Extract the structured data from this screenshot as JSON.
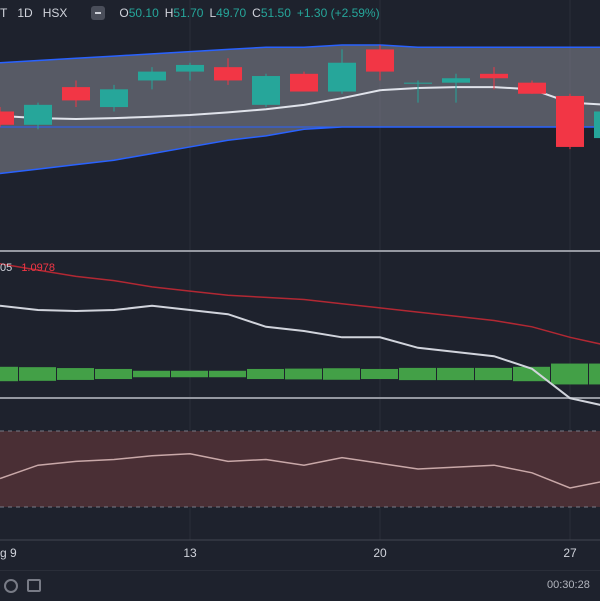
{
  "legend": {
    "symbol_tail": "T",
    "interval": "1D",
    "exchange": "HSX",
    "open_label": "O",
    "open_value": "50.10",
    "high_label": "H",
    "high_value": "51.70",
    "low_label": "L",
    "low_value": "49.70",
    "close_label": "C",
    "close_value": "51.50",
    "change": "+1.30 (+2.59%)"
  },
  "macd_legend": {
    "value_a": "05",
    "value_b": "1.0978"
  },
  "bottom_bar": {
    "time": "00:30:28"
  },
  "colors": {
    "background": "#1e222d",
    "up": "#26a69a",
    "down": "#f23645",
    "band": "#2962ff",
    "band_fill": "#868993",
    "macd_line": "#d1d4dc",
    "signal_line": "#b22833",
    "rsi_fill": "#4a2f35",
    "rsi_line": "#c9a8a8",
    "grid": "#2a2e39"
  },
  "chart_data": {
    "type": "candlestick",
    "x_ticks": [
      "g 9",
      "13",
      "20",
      "27"
    ],
    "x_tick_index": [
      0,
      5,
      10,
      15
    ],
    "candles": [
      {
        "o": 49.9,
        "h": 50.0,
        "l": 49.55,
        "c": 49.6
      },
      {
        "o": 49.6,
        "h": 50.1,
        "l": 49.5,
        "c": 50.05
      },
      {
        "o": 50.45,
        "h": 50.6,
        "l": 50.0,
        "c": 50.15
      },
      {
        "o": 50.0,
        "h": 50.5,
        "l": 49.9,
        "c": 50.4
      },
      {
        "o": 50.6,
        "h": 50.9,
        "l": 50.4,
        "c": 50.8
      },
      {
        "o": 50.8,
        "h": 51.0,
        "l": 50.6,
        "c": 50.95
      },
      {
        "o": 50.9,
        "h": 51.1,
        "l": 50.5,
        "c": 50.6
      },
      {
        "o": 50.05,
        "h": 50.75,
        "l": 50.0,
        "c": 50.7
      },
      {
        "o": 50.75,
        "h": 50.8,
        "l": 50.35,
        "c": 50.35
      },
      {
        "o": 50.35,
        "h": 51.3,
        "l": 50.3,
        "c": 51.0
      },
      {
        "o": 51.3,
        "h": 51.4,
        "l": 50.6,
        "c": 50.8
      },
      {
        "o": 50.55,
        "h": 50.6,
        "l": 50.1,
        "c": 50.55
      },
      {
        "o": 50.55,
        "h": 50.75,
        "l": 50.1,
        "c": 50.65
      },
      {
        "o": 50.75,
        "h": 50.9,
        "l": 50.4,
        "c": 50.65
      },
      {
        "o": 50.55,
        "h": 50.6,
        "l": 50.3,
        "c": 50.3
      },
      {
        "o": 50.25,
        "h": 50.3,
        "l": 49.05,
        "c": 49.1
      },
      {
        "o": 49.3,
        "h": 50.0,
        "l": 49.2,
        "c": 49.9
      }
    ],
    "bb_upper": [
      51.0,
      51.05,
      51.1,
      51.15,
      51.2,
      51.25,
      51.3,
      51.35,
      51.35,
      51.4,
      51.4,
      51.35,
      51.35,
      51.35,
      51.35,
      51.35,
      51.35
    ],
    "bb_middle": [
      49.8,
      49.75,
      49.73,
      49.75,
      49.78,
      49.82,
      49.88,
      49.95,
      50.05,
      50.2,
      50.38,
      50.43,
      50.45,
      50.45,
      50.4,
      50.1,
      50.05
    ],
    "bb_lower": [
      48.5,
      48.6,
      48.7,
      48.8,
      48.95,
      49.1,
      49.25,
      49.35,
      49.5,
      49.55,
      49.55,
      49.55,
      49.55,
      49.55,
      49.55,
      49.55,
      49.55
    ],
    "reference_line": 49.55,
    "macd": [
      0.62,
      0.6,
      0.595,
      0.6,
      0.62,
      0.6,
      0.58,
      0.52,
      0.5,
      0.47,
      0.47,
      0.42,
      0.4,
      0.38,
      0.32,
      0.18,
      0.14
    ],
    "signal": [
      0.82,
      0.79,
      0.76,
      0.74,
      0.71,
      0.69,
      0.67,
      0.66,
      0.65,
      0.63,
      0.61,
      0.59,
      0.57,
      0.55,
      0.52,
      0.47,
      0.43
    ],
    "histogram": [
      -0.2,
      -0.19,
      -0.165,
      -0.14,
      -0.09,
      -0.09,
      -0.09,
      -0.14,
      -0.15,
      -0.16,
      -0.14,
      -0.17,
      -0.17,
      -0.17,
      -0.2,
      -0.29,
      -0.29
    ],
    "rsi": [
      45,
      52,
      54,
      55,
      57,
      58,
      54,
      55,
      52,
      56,
      53,
      50,
      51,
      52,
      48,
      40,
      44
    ]
  }
}
